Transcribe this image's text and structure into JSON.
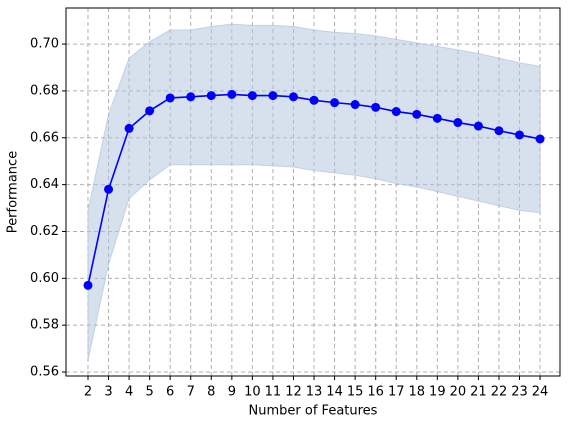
{
  "chart_data": {
    "type": "line",
    "xlabel": "Number of Features",
    "ylabel": "Performance",
    "x": [
      2,
      3,
      4,
      5,
      6,
      7,
      8,
      9,
      10,
      11,
      12,
      13,
      14,
      15,
      16,
      17,
      18,
      19,
      20,
      21,
      22,
      23,
      24
    ],
    "values": [
      0.597,
      0.638,
      0.664,
      0.6715,
      0.677,
      0.6775,
      0.678,
      0.6785,
      0.678,
      0.678,
      0.6775,
      0.676,
      0.675,
      0.6742,
      0.673,
      0.6712,
      0.67,
      0.6683,
      0.6665,
      0.665,
      0.663,
      0.6612,
      0.6595
    ],
    "color": "#0000ff",
    "band": {
      "color": "#b0c4de",
      "upper": [
        0.629,
        0.67,
        0.694,
        0.701,
        0.706,
        0.706,
        0.7075,
        0.7085,
        0.708,
        0.708,
        0.7075,
        0.706,
        0.705,
        0.7045,
        0.7035,
        0.702,
        0.7005,
        0.699,
        0.6975,
        0.696,
        0.694,
        0.692,
        0.6905
      ],
      "lower": [
        0.565,
        0.606,
        0.634,
        0.642,
        0.6485,
        0.6485,
        0.6485,
        0.6485,
        0.6485,
        0.648,
        0.6475,
        0.646,
        0.645,
        0.644,
        0.6425,
        0.6405,
        0.639,
        0.637,
        0.635,
        0.633,
        0.631,
        0.629,
        0.628
      ]
    },
    "xlim": [
      0.93,
      24.97
    ],
    "ylim": [
      0.5583,
      0.7154
    ],
    "xticks": [
      2,
      3,
      4,
      5,
      6,
      7,
      8,
      9,
      10,
      11,
      12,
      13,
      14,
      15,
      16,
      17,
      18,
      19,
      20,
      21,
      22,
      23,
      24
    ],
    "yticks": [
      0.56,
      0.58,
      {
        "value": 0.6,
        "label": "0.60"
      },
      0.62,
      0.64,
      0.66,
      0.68,
      {
        "value": 0.7,
        "label": "0.70"
      }
    ],
    "grid": true
  }
}
